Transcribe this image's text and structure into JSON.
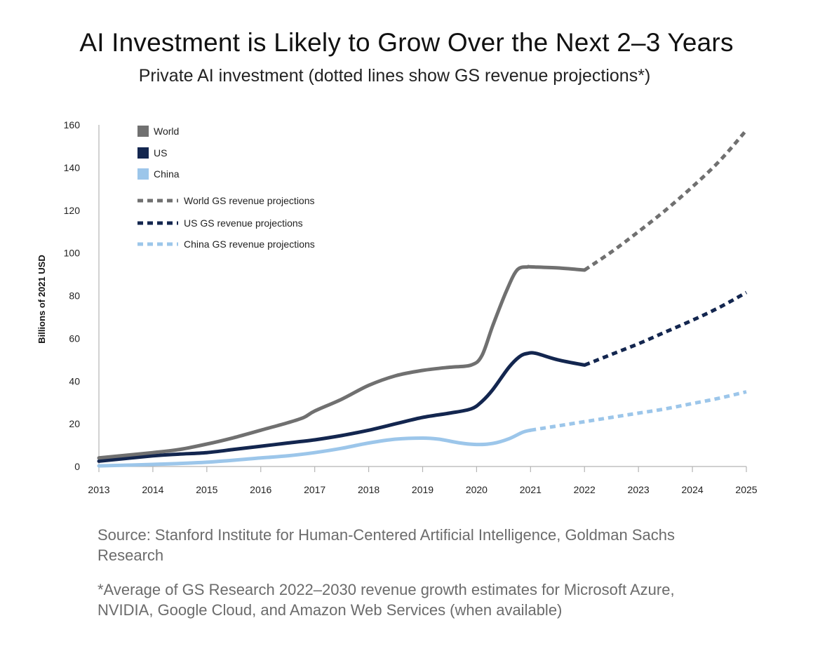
{
  "chart_data": {
    "type": "line",
    "title": "AI Investment is Likely to Grow Over the Next 2–3 Years",
    "subtitle": "Private AI investment (dotted lines show GS revenue projections*)",
    "ylabel": "Billions of 2021 USD",
    "xlabel": "",
    "ylim": [
      0,
      160
    ],
    "yticks": [
      0,
      20,
      40,
      60,
      80,
      100,
      120,
      140,
      160
    ],
    "xlim": [
      2013,
      2025
    ],
    "xticks": [
      2013,
      2014,
      2015,
      2016,
      2017,
      2018,
      2019,
      2020,
      2021,
      2022,
      2023,
      2024,
      2025
    ],
    "legend_position": "top-left",
    "series": [
      {
        "name": "World",
        "color": "#707070",
        "style": "solid",
        "x": [
          2013,
          2014,
          2014.5,
          2015,
          2015.5,
          2016,
          2016.5,
          2016.8,
          2017,
          2017.5,
          2018,
          2018.5,
          2019,
          2019.5,
          2019.9,
          2020.1,
          2020.3,
          2020.55,
          2020.75,
          2020.95,
          2021,
          2021.5,
          2022
        ],
        "y": [
          4,
          6.5,
          8,
          10.5,
          13.5,
          17,
          20.5,
          23,
          26,
          31.5,
          38,
          42.5,
          45,
          46.5,
          47.5,
          52,
          66,
          82,
          92,
          93.5,
          93.5,
          93,
          92
        ]
      },
      {
        "name": "US",
        "color": "#13264f",
        "style": "solid",
        "x": [
          2013,
          2014,
          2014.5,
          2015,
          2015.5,
          2016,
          2016.5,
          2017,
          2017.5,
          2018,
          2018.5,
          2019,
          2019.5,
          2019.9,
          2020.1,
          2020.3,
          2020.6,
          2020.8,
          2020.95,
          2021.1,
          2021.5,
          2022
        ],
        "y": [
          2.5,
          5,
          5.8,
          6.5,
          8,
          9.5,
          11,
          12.5,
          14.5,
          17,
          20,
          23,
          25,
          27,
          30.5,
          36,
          46.5,
          51.5,
          53,
          53,
          50,
          47.5
        ]
      },
      {
        "name": "China",
        "color": "#9cc6ea",
        "style": "solid",
        "x": [
          2013,
          2014,
          2015,
          2016,
          2016.5,
          2017,
          2017.5,
          2018,
          2018.5,
          2019,
          2019.3,
          2019.7,
          2020,
          2020.3,
          2020.6,
          2020.85,
          2021
        ],
        "y": [
          0.3,
          1,
          2,
          4,
          5,
          6.5,
          8.5,
          11,
          12.8,
          13.3,
          12.8,
          11,
          10.3,
          10.8,
          13,
          16,
          17
        ]
      },
      {
        "name": "World GS revenue projections",
        "color": "#707070",
        "style": "dotted",
        "x": [
          2022,
          2022.5,
          2023,
          2023.5,
          2024,
          2024.5,
          2025
        ],
        "y": [
          92,
          100.5,
          110,
          120,
          131,
          143,
          157.5
        ]
      },
      {
        "name": "US GS revenue projections",
        "color": "#13264f",
        "style": "dotted",
        "x": [
          2022,
          2022.5,
          2023,
          2023.5,
          2024,
          2024.5,
          2025
        ],
        "y": [
          47.5,
          52.5,
          57.5,
          63,
          68.5,
          74.5,
          81.5
        ]
      },
      {
        "name": "China GS revenue projections",
        "color": "#9cc6ea",
        "style": "dotted",
        "x": [
          2021,
          2021.5,
          2022,
          2022.5,
          2023,
          2023.5,
          2024,
          2024.5,
          2025
        ],
        "y": [
          17,
          19,
          21,
          23,
          25,
          27,
          29.5,
          32,
          35
        ]
      }
    ]
  },
  "footnotes": {
    "source": "Source: Stanford Institute for Human-Centered Artificial Intelligence, Goldman Sachs Research",
    "note": "*Average of GS Research 2022–2030 revenue growth estimates for Microsoft Azure, NVIDIA, Google Cloud, and Amazon Web Services (when available)"
  }
}
